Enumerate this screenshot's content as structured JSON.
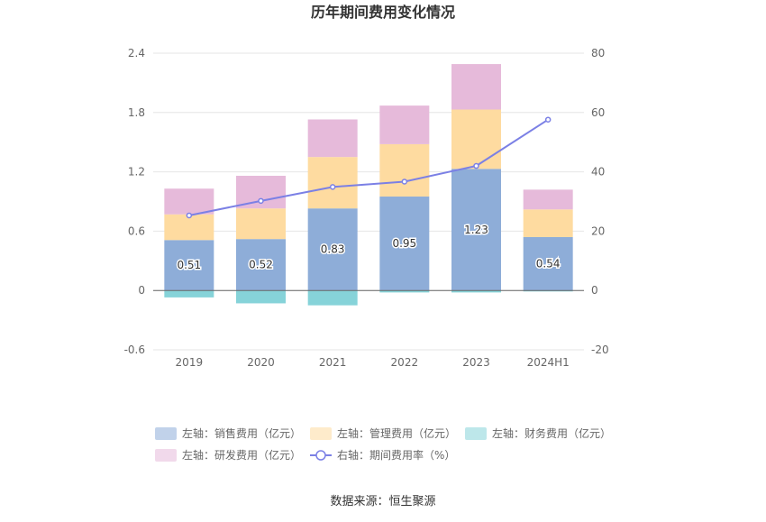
{
  "chart_data": {
    "type": "bar",
    "title": "历年期间费用变化情况",
    "categories": [
      "2019",
      "2020",
      "2021",
      "2022",
      "2023",
      "2024H1"
    ],
    "series": [
      {
        "name": "左轴：销售费用（亿元）",
        "axis": "left",
        "kind": "bar",
        "color": "#8eadd8",
        "values": [
          0.51,
          0.52,
          0.83,
          0.95,
          1.23,
          0.54
        ],
        "labels": [
          "0.51",
          "0.52",
          "0.83",
          "0.95",
          "1.23",
          "0.54"
        ]
      },
      {
        "name": "左轴：管理费用（亿元）",
        "axis": "left",
        "kind": "bar",
        "color": "#fedba0",
        "values": [
          0.26,
          0.31,
          0.52,
          0.53,
          0.6,
          0.28
        ]
      },
      {
        "name": "左轴：财务费用（亿元）",
        "axis": "left",
        "kind": "bar",
        "color": "#86d3d9",
        "values": [
          -0.07,
          -0.13,
          -0.15,
          -0.02,
          -0.02,
          -0.01
        ]
      },
      {
        "name": "左轴：研发费用（亿元）",
        "axis": "left",
        "kind": "bar",
        "color": "#e6bada",
        "values": [
          0.26,
          0.33,
          0.38,
          0.39,
          0.46,
          0.2
        ]
      },
      {
        "name": "右轴：期间费用率（%）",
        "axis": "right",
        "kind": "line",
        "color": "#7b80e5",
        "values": [
          25.3,
          30.2,
          34.9,
          36.7,
          42.0,
          57.6
        ]
      }
    ],
    "left_axis": {
      "min": -0.6,
      "max": 2.4,
      "ticks": [
        "-0.6",
        "0",
        "0.6",
        "1.2",
        "1.8",
        "2.4"
      ]
    },
    "right_axis": {
      "min": -20,
      "max": 80,
      "ticks": [
        "-20",
        "0",
        "20",
        "40",
        "60",
        "80"
      ]
    },
    "grid": true,
    "legend_position": "bottom",
    "source": "数据来源：恒生聚源"
  }
}
